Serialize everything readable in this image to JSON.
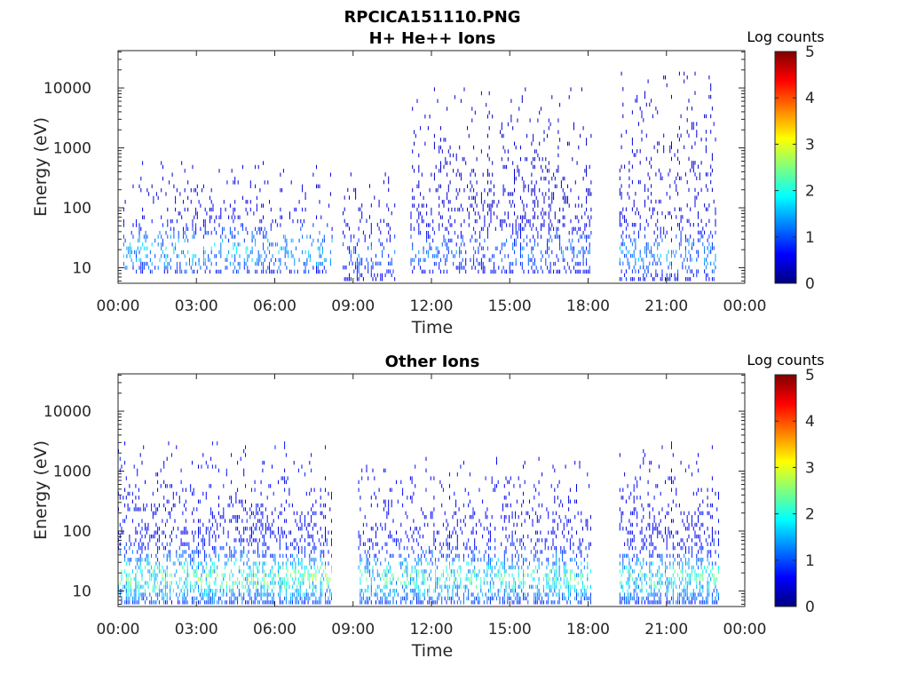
{
  "figure_title": "RPCICA151110.PNG",
  "colorbar_colors": [
    "#00007f",
    "#0000ff",
    "#007fff",
    "#00ffff",
    "#7fff7f",
    "#ffff00",
    "#ff7f00",
    "#ff0000",
    "#7f0000"
  ],
  "chart_data": [
    {
      "type": "heatmap",
      "title": "H+ He++ Ions",
      "xlabel": "Time",
      "ylabel": "Energy (eV)",
      "x_tick_labels": [
        "00:00",
        "03:00",
        "06:00",
        "09:00",
        "12:00",
        "15:00",
        "18:00",
        "21:00",
        "00:00"
      ],
      "x_range_hours": [
        0,
        24
      ],
      "y_scale": "log",
      "y_range": [
        5.5,
        42000
      ],
      "y_ticks": [
        10,
        100,
        1000,
        10000
      ],
      "y_tick_labels": [
        "10",
        "100",
        "1000",
        "10000"
      ],
      "colorbar_label": "Log counts",
      "colorbar_range": [
        0,
        5
      ],
      "colorbar_ticks": [
        "0",
        "1",
        "2",
        "3",
        "4",
        "5"
      ],
      "data_coverage_hours": [
        [
          0.2,
          8.2
        ],
        [
          8.6,
          10.6
        ],
        [
          11.2,
          18.1
        ],
        [
          19.2,
          22.9
        ]
      ],
      "features": [
        {
          "t_start": 0.2,
          "t_end": 8.2,
          "e_low": 8,
          "e_high": 600,
          "peak_log_counts": 1.8
        },
        {
          "t_start": 8.6,
          "t_end": 10.6,
          "e_low": 6,
          "e_high": 400,
          "peak_log_counts": 1.3
        },
        {
          "t_start": 11.2,
          "t_end": 18.1,
          "e_low": 8,
          "e_high": 10000,
          "peak_log_counts": 1.3
        },
        {
          "t_start": 19.2,
          "t_end": 22.9,
          "e_low": 6,
          "e_high": 20000,
          "peak_log_counts": 1.6
        }
      ]
    },
    {
      "type": "heatmap",
      "title": "Other Ions",
      "xlabel": "Time",
      "ylabel": "Energy (eV)",
      "x_tick_labels": [
        "00:00",
        "03:00",
        "06:00",
        "09:00",
        "12:00",
        "15:00",
        "18:00",
        "21:00",
        "00:00"
      ],
      "x_range_hours": [
        0,
        24
      ],
      "y_scale": "log",
      "y_range": [
        5.5,
        42000
      ],
      "y_ticks": [
        10,
        100,
        1000,
        10000
      ],
      "y_tick_labels": [
        "10",
        "100",
        "1000",
        "10000"
      ],
      "colorbar_label": "Log counts",
      "colorbar_range": [
        0,
        5
      ],
      "colorbar_ticks": [
        "0",
        "1",
        "2",
        "3",
        "4",
        "5"
      ],
      "data_coverage_hours": [
        [
          0.0,
          8.2
        ],
        [
          9.2,
          18.1
        ],
        [
          19.2,
          23.0
        ]
      ],
      "features": [
        {
          "t_start": 0.0,
          "t_end": 8.2,
          "e_low": 6,
          "e_high": 3000,
          "peak_log_counts": 2.7
        },
        {
          "t_start": 9.2,
          "t_end": 18.1,
          "e_low": 6,
          "e_high": 1500,
          "peak_log_counts": 2.5
        },
        {
          "t_start": 19.2,
          "t_end": 23.0,
          "e_low": 6,
          "e_high": 3000,
          "peak_log_counts": 2.4
        }
      ]
    }
  ]
}
